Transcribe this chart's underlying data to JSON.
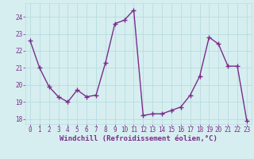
{
  "x": [
    0,
    1,
    2,
    3,
    4,
    5,
    6,
    7,
    8,
    9,
    10,
    11,
    12,
    13,
    14,
    15,
    16,
    17,
    18,
    19,
    20,
    21,
    22,
    23
  ],
  "y": [
    22.6,
    21.0,
    19.9,
    19.3,
    19.0,
    19.7,
    19.3,
    19.4,
    21.3,
    23.6,
    23.8,
    24.4,
    18.2,
    18.3,
    18.3,
    18.5,
    18.7,
    19.4,
    20.5,
    22.8,
    22.4,
    21.1,
    21.1,
    17.9
  ],
  "ylim": [
    17.7,
    24.8
  ],
  "yticks": [
    18,
    19,
    20,
    21,
    22,
    23,
    24
  ],
  "xticks": [
    0,
    1,
    2,
    3,
    4,
    5,
    6,
    7,
    8,
    9,
    10,
    11,
    12,
    13,
    14,
    15,
    16,
    17,
    18,
    19,
    20,
    21,
    22,
    23
  ],
  "line_color": "#7b2d8b",
  "marker": "+",
  "marker_size": 4,
  "marker_linewidth": 1.0,
  "linewidth": 1.0,
  "bg_color": "#d6eef0",
  "grid_color": "#b8dde0",
  "xlabel": "Windchill (Refroidissement éolien,°C)",
  "font_color": "#7b2d8b",
  "tick_fontsize": 5.5,
  "xlabel_fontsize": 6.5
}
